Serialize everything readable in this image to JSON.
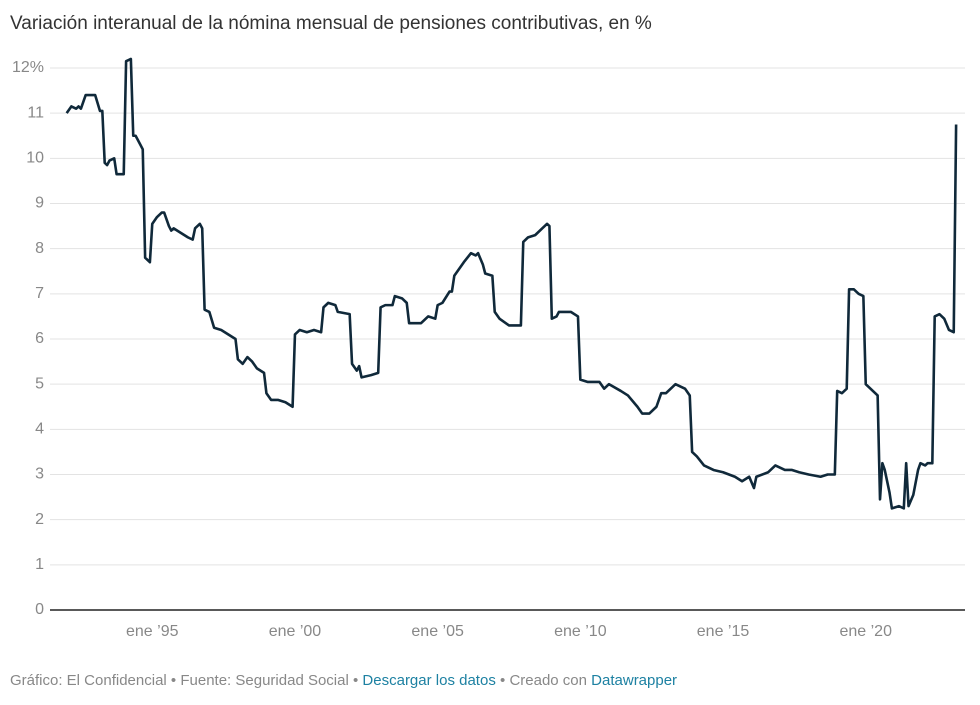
{
  "chart_data": {
    "type": "line",
    "title": "Variación interanual de la nómina mensual de pensiones contributivas, en %",
    "color": "#10293a",
    "x": [
      "1992-01",
      "1992-03",
      "1992-05",
      "1992-06",
      "1992-07",
      "1992-09",
      "1993-01",
      "1993-03",
      "1993-04",
      "1993-05",
      "1993-06",
      "1993-07",
      "1993-09",
      "1993-10",
      "1993-12",
      "1994-01",
      "1994-02",
      "1994-04",
      "1994-05",
      "1994-06",
      "1994-08",
      "1994-09",
      "1994-10",
      "1994-12",
      "1995-01",
      "1995-03",
      "1995-05",
      "1995-06",
      "1995-08",
      "1995-09",
      "1995-10",
      "1996-01",
      "1996-04",
      "1996-06",
      "1996-07",
      "1996-09",
      "1996-10",
      "1996-11",
      "1997-01",
      "1997-03",
      "1997-06",
      "1997-09",
      "1997-12",
      "1998-01",
      "1998-03",
      "1998-05",
      "1998-07",
      "1998-09",
      "1998-12",
      "1999-01",
      "1999-03",
      "1999-06",
      "1999-09",
      "1999-12",
      "2000-01",
      "2000-03",
      "2000-06",
      "2000-09",
      "2000-12",
      "2001-01",
      "2001-03",
      "2001-06",
      "2001-07",
      "2001-12",
      "2002-01",
      "2002-03",
      "2002-04",
      "2002-05",
      "2002-09",
      "2002-12",
      "2003-01",
      "2003-03",
      "2003-06",
      "2003-07",
      "2003-10",
      "2003-12",
      "2004-01",
      "2004-06",
      "2004-09",
      "2004-12",
      "2005-01",
      "2005-03",
      "2005-06",
      "2005-07",
      "2005-08",
      "2005-12",
      "2006-03",
      "2006-05",
      "2006-06",
      "2006-08",
      "2006-09",
      "2006-12",
      "2007-01",
      "2007-03",
      "2007-07",
      "2007-12",
      "2008-01",
      "2008-03",
      "2008-06",
      "2008-09",
      "2008-11",
      "2008-12",
      "2009-01",
      "2009-03",
      "2009-04",
      "2009-06",
      "2009-09",
      "2009-12",
      "2010-01",
      "2010-04",
      "2010-09",
      "2010-11",
      "2011-01",
      "2011-06",
      "2011-09",
      "2012-01",
      "2012-03",
      "2012-06",
      "2012-09",
      "2012-11",
      "2013-01",
      "2013-05",
      "2013-09",
      "2013-11",
      "2013-12",
      "2014-02",
      "2014-05",
      "2014-09",
      "2015-01",
      "2015-06",
      "2015-09",
      "2015-12",
      "2016-02",
      "2016-03",
      "2016-08",
      "2016-11",
      "2017-03",
      "2017-06",
      "2017-09",
      "2018-01",
      "2018-06",
      "2018-09",
      "2018-12",
      "2019-01",
      "2019-03",
      "2019-05",
      "2019-06",
      "2019-08",
      "2019-10",
      "2019-12",
      "2020-01",
      "2020-04",
      "2020-06",
      "2020-07",
      "2020-08",
      "2020-09",
      "2020-11",
      "2020-12",
      "2021-03",
      "2021-05",
      "2021-06",
      "2021-07",
      "2021-09",
      "2021-11",
      "2021-12",
      "2022-02",
      "2022-03",
      "2022-05",
      "2022-06",
      "2022-08",
      "2022-10",
      "2022-12",
      "2023-02",
      "2023-03"
    ],
    "values": [
      11.0,
      11.15,
      11.1,
      11.15,
      11.1,
      11.4,
      11.4,
      11.05,
      11.05,
      9.9,
      9.85,
      9.95,
      10.0,
      9.65,
      9.65,
      9.65,
      12.15,
      12.2,
      10.5,
      10.5,
      10.3,
      10.2,
      7.8,
      7.7,
      8.55,
      8.7,
      8.8,
      8.8,
      8.5,
      8.4,
      8.45,
      8.35,
      8.25,
      8.2,
      8.45,
      8.55,
      8.45,
      6.65,
      6.6,
      6.25,
      6.2,
      6.1,
      6.0,
      5.55,
      5.45,
      5.6,
      5.5,
      5.35,
      5.25,
      4.8,
      4.65,
      4.65,
      4.6,
      4.5,
      6.1,
      6.2,
      6.15,
      6.2,
      6.15,
      6.7,
      6.8,
      6.75,
      6.6,
      6.55,
      5.45,
      5.3,
      5.4,
      5.15,
      5.2,
      5.25,
      6.7,
      6.75,
      6.75,
      6.95,
      6.9,
      6.8,
      6.35,
      6.35,
      6.5,
      6.45,
      6.75,
      6.8,
      7.05,
      7.05,
      7.4,
      7.7,
      7.9,
      7.85,
      7.9,
      7.65,
      7.45,
      7.4,
      6.6,
      6.45,
      6.3,
      6.3,
      8.15,
      8.25,
      8.3,
      8.45,
      8.55,
      8.5,
      6.45,
      6.5,
      6.6,
      6.6,
      6.6,
      6.5,
      5.1,
      5.05,
      5.05,
      4.9,
      5.0,
      4.85,
      4.75,
      4.5,
      4.35,
      4.35,
      4.5,
      4.8,
      4.8,
      5.0,
      4.9,
      4.75,
      3.5,
      3.4,
      3.2,
      3.1,
      3.05,
      2.95,
      2.85,
      2.95,
      2.7,
      2.95,
      3.05,
      3.2,
      3.1,
      3.1,
      3.05,
      3.0,
      2.95,
      3.0,
      3.0,
      4.85,
      4.8,
      4.9,
      7.1,
      7.1,
      7.0,
      6.95,
      5.0,
      4.85,
      4.75,
      2.45,
      3.25,
      3.1,
      2.6,
      2.25,
      2.3,
      2.25,
      3.25,
      2.3,
      2.55,
      3.1,
      3.25,
      3.2,
      3.25,
      3.25,
      6.5,
      6.55,
      6.45,
      6.2,
      6.15,
      10.75
    ],
    "xlim": [
      "1991-06",
      "2023-08"
    ],
    "xticks": [
      {
        "value": "1995-01",
        "label": "ene ’95"
      },
      {
        "value": "2000-01",
        "label": "ene ’00"
      },
      {
        "value": "2005-01",
        "label": "ene ’05"
      },
      {
        "value": "2010-01",
        "label": "ene ’10"
      },
      {
        "value": "2015-01",
        "label": "ene ’15"
      },
      {
        "value": "2020-01",
        "label": "ene ’20"
      }
    ],
    "ylim": [
      0,
      12
    ],
    "yticks": [
      0,
      1,
      2,
      3,
      4,
      5,
      6,
      7,
      8,
      9,
      10,
      11,
      {
        "value": 12,
        "label": "12%"
      }
    ],
    "grid": true
  },
  "footer": {
    "credit": "Gráfico: El Confidencial",
    "separator": "•",
    "source": "Fuente: Seguridad Social",
    "download": "Descargar los datos",
    "made_with": "Creado con",
    "tool": "Datawrapper"
  }
}
